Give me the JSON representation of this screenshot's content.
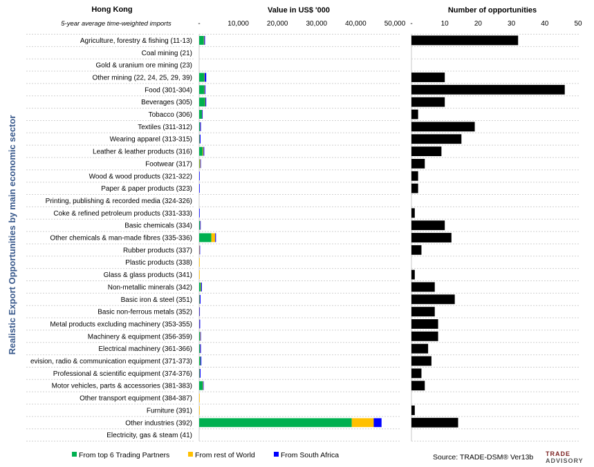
{
  "header": {
    "country": "Hong Kong",
    "subtitle": "5-year average time-weighted imports",
    "value_title": "Value in US$ '000",
    "opp_title": "Number of opportunities"
  },
  "vertical_title": "Realistic Export Opportunities by main economic sector",
  "legend": [
    {
      "label": "From top 6 Trading Partners",
      "color": "#00b050"
    },
    {
      "label": "From rest of World",
      "color": "#ffc000"
    },
    {
      "label": "From South Africa",
      "color": "#0000ff"
    }
  ],
  "source": "Source: TRADE-DSM®  Ver13b",
  "logo": {
    "line1": "TRADE",
    "line2": "ADVISORY"
  },
  "colors": {
    "top6": "#00b050",
    "rest": "#ffc000",
    "sa": "#0000ff",
    "opp": "#000000",
    "title": "#3a5a8c"
  },
  "chart_data": [
    {
      "type": "bar",
      "orientation": "horizontal",
      "stacked": true,
      "title": "Value in US$ '000",
      "xlim": [
        0,
        50000
      ],
      "tick_labels": [
        "-",
        "10,000",
        "20,000",
        "30,000",
        "40,000",
        "50,000"
      ],
      "categories": [
        "Agriculture, forestry & fishing (11-13)",
        "Coal mining (21)",
        "Gold & uranium ore mining (23)",
        "Other mining (22, 24, 25, 29, 39)",
        "Food (301-304)",
        "Beverages (305)",
        "Tobacco (306)",
        "Textiles (311-312)",
        "Wearing apparel (313-315)",
        "Leather & leather products (316)",
        "Footwear (317)",
        "Wood & wood products (321-322)",
        "Paper & paper products (323)",
        "Printing, publishing & recorded media (324-326)",
        "Coke & refined petroleum products (331-333)",
        "Basic chemicals (334)",
        "Other chemicals & man-made fibres (335-336)",
        "Rubber products (337)",
        "Plastic products (338)",
        "Glass & glass products (341)",
        "Non-metallic minerals (342)",
        "Basic iron & steel (351)",
        "Basic non-ferrous metals (352)",
        "Metal products excluding machinery (353-355)",
        "Machinery & equipment (356-359)",
        "Electrical machinery (361-366)",
        "evision, radio & communication equipment (371-373)",
        "Professional & scientific equipment (374-376)",
        "Motor vehicles, parts & accessories (381-383)",
        "Other transport equipment (384-387)",
        "Furniture (391)",
        "Other industries (392)",
        "Electricity, gas & steam (41)"
      ],
      "series": [
        {
          "name": "From top 6 Trading Partners",
          "values": [
            1200,
            0,
            0,
            1300,
            1300,
            1500,
            700,
            200,
            100,
            900,
            100,
            0,
            0,
            0,
            0,
            200,
            3100,
            0,
            0,
            0,
            400,
            100,
            0,
            0,
            200,
            200,
            300,
            100,
            900,
            0,
            0,
            39000,
            0
          ]
        },
        {
          "name": "From rest of World",
          "values": [
            100,
            0,
            0,
            100,
            100,
            100,
            50,
            50,
            50,
            200,
            200,
            0,
            0,
            0,
            0,
            50,
            1000,
            100,
            50,
            50,
            100,
            50,
            50,
            50,
            100,
            50,
            50,
            50,
            100,
            50,
            50,
            5600,
            0
          ]
        },
        {
          "name": "From South Africa",
          "values": [
            200,
            0,
            0,
            400,
            200,
            200,
            100,
            200,
            200,
            200,
            100,
            100,
            100,
            0,
            100,
            100,
            200,
            100,
            0,
            0,
            200,
            200,
            100,
            200,
            100,
            200,
            200,
            200,
            100,
            0,
            0,
            2000,
            0
          ]
        }
      ]
    },
    {
      "type": "bar",
      "orientation": "horizontal",
      "title": "Number of opportunities",
      "xlim": [
        0,
        50
      ],
      "tick_labels": [
        "-",
        "10",
        "20",
        "30",
        "40",
        "50"
      ],
      "series": [
        {
          "values": [
            32,
            0,
            0,
            10,
            46,
            10,
            2,
            19,
            15,
            9,
            4,
            2,
            2,
            0,
            1,
            10,
            12,
            3,
            0,
            1,
            7,
            13,
            7,
            8,
            8,
            5,
            6,
            3,
            4,
            0,
            1,
            14,
            0
          ]
        }
      ]
    }
  ]
}
